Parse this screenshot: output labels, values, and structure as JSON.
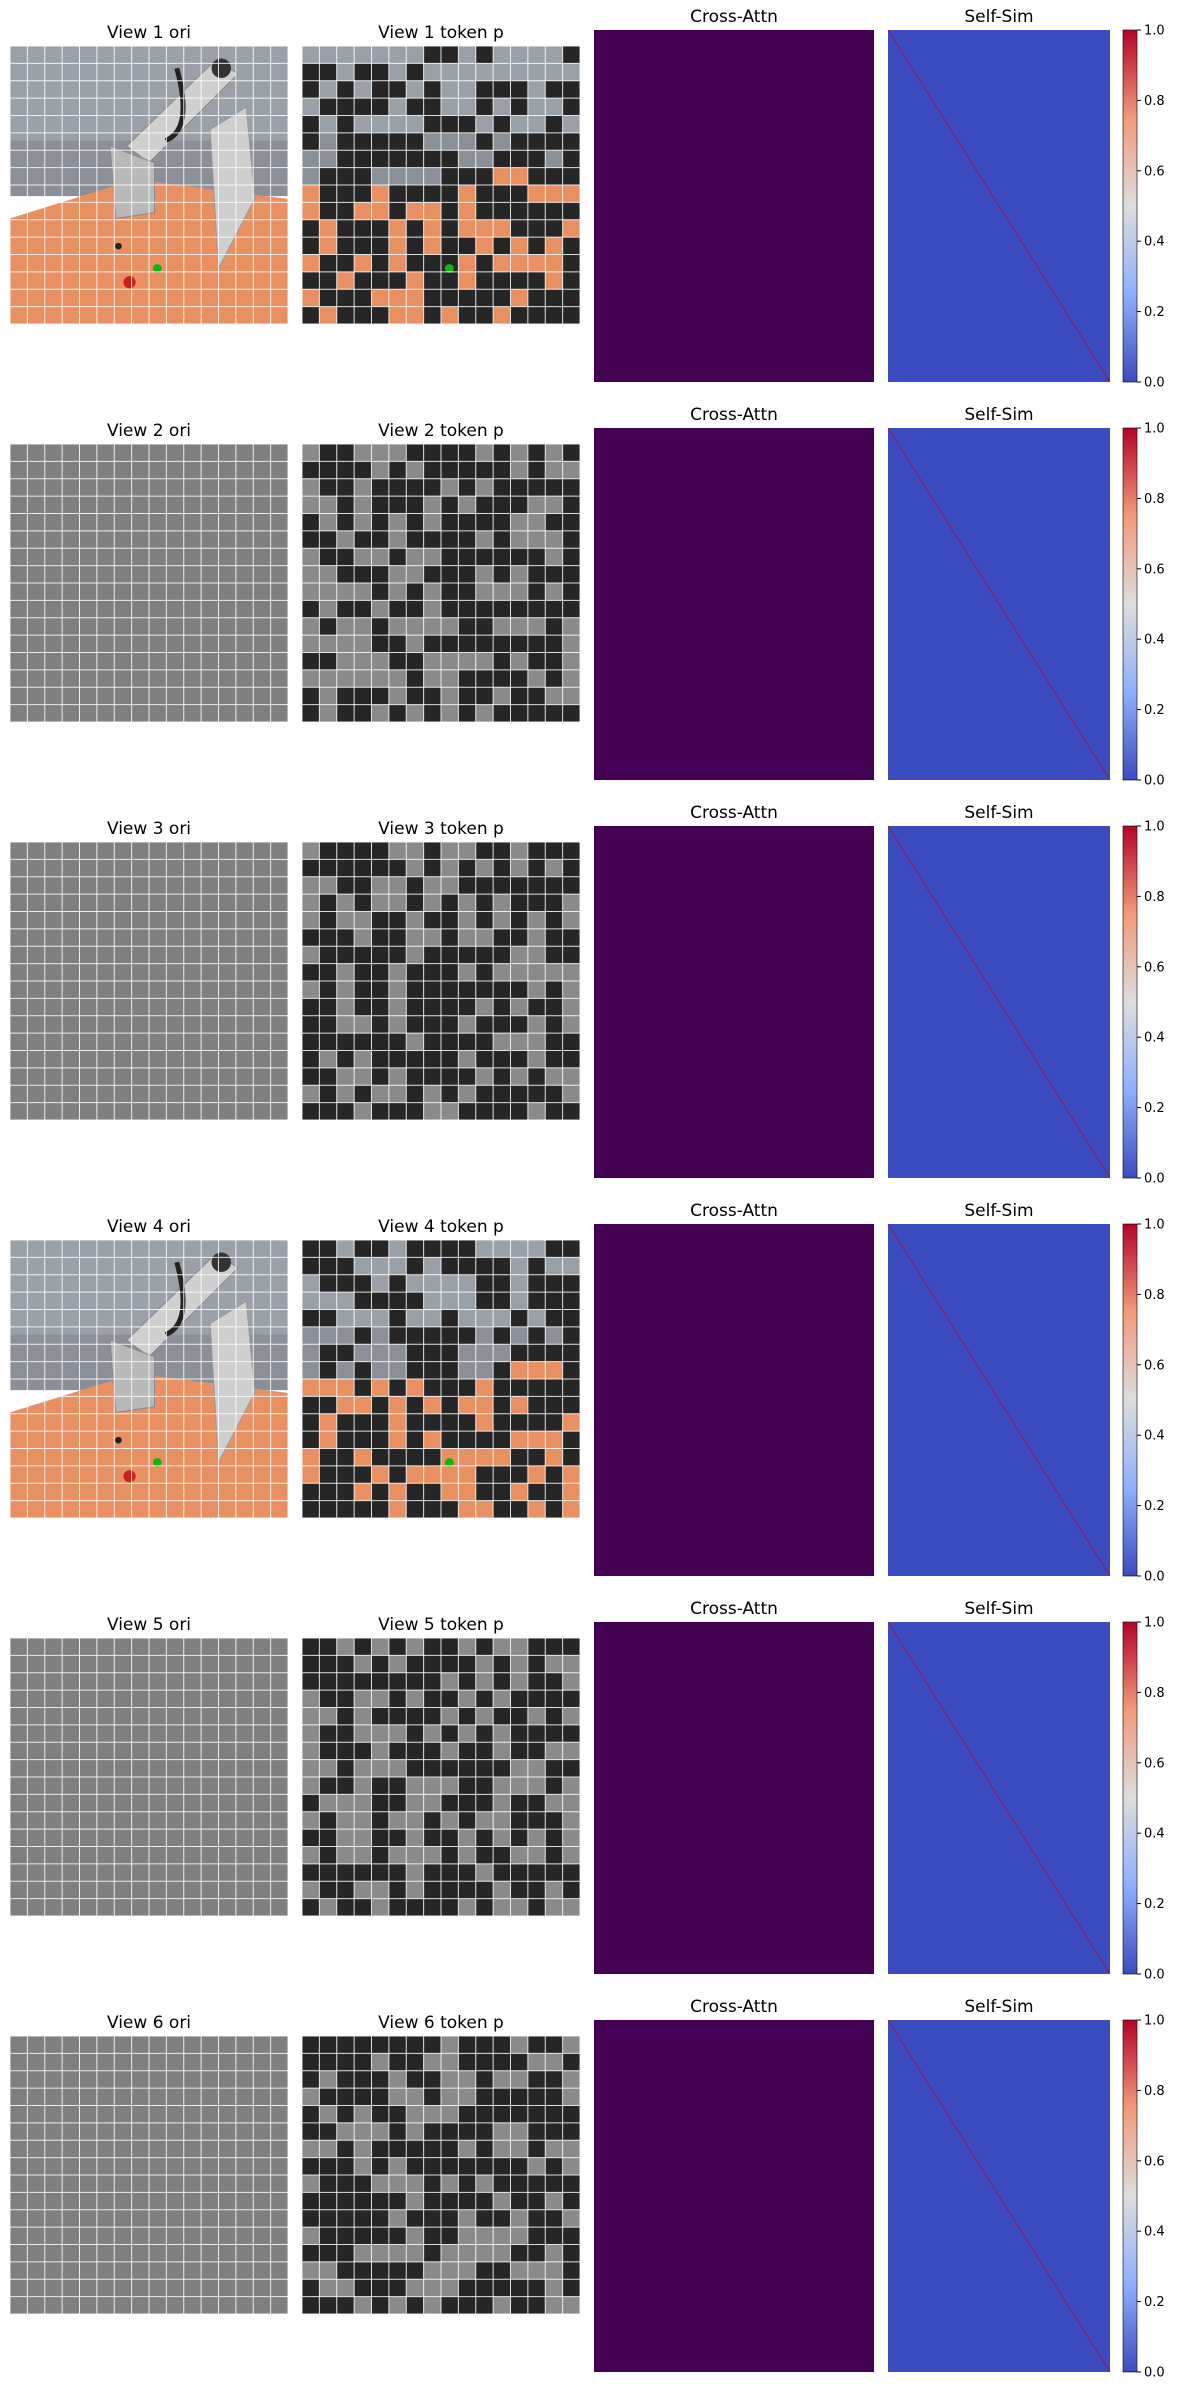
{
  "chart_data": {
    "type": "heatmap",
    "rows": [
      {
        "view": 1,
        "panels": [
          {
            "title": "View 1 ori",
            "content": "image",
            "scene": "robot"
          },
          {
            "title": "View 1 token p",
            "content": "token-mask",
            "scene": "robot"
          },
          {
            "title": "Cross-Attn",
            "content": "heatmap",
            "colormap": "viridis",
            "uniform_value": 0.0
          },
          {
            "title": "Self-Sim",
            "content": "heatmap",
            "colormap": "coolwarm",
            "diagonal_value": 1.0,
            "off_diagonal_value": 0.0
          }
        ],
        "colorbar": {
          "ticks": [
            "0.0",
            "0.2",
            "0.4",
            "0.6",
            "0.8",
            "1.0"
          ],
          "range": [
            0,
            1
          ],
          "colormap": "coolwarm"
        }
      },
      {
        "view": 2,
        "panels": [
          {
            "title": "View 2 ori",
            "content": "image",
            "scene": "blank"
          },
          {
            "title": "View 2 token p",
            "content": "token-mask",
            "scene": "blank"
          },
          {
            "title": "Cross-Attn",
            "content": "heatmap",
            "colormap": "viridis",
            "uniform_value": 0.0
          },
          {
            "title": "Self-Sim",
            "content": "heatmap",
            "colormap": "coolwarm",
            "diagonal_value": 1.0,
            "off_diagonal_value": 0.0
          }
        ],
        "colorbar": {
          "ticks": [
            "0.0",
            "0.2",
            "0.4",
            "0.6",
            "0.8",
            "1.0"
          ],
          "range": [
            0,
            1
          ],
          "colormap": "coolwarm"
        }
      },
      {
        "view": 3,
        "panels": [
          {
            "title": "View 3 ori",
            "content": "image",
            "scene": "blank"
          },
          {
            "title": "View 3 token p",
            "content": "token-mask",
            "scene": "blank"
          },
          {
            "title": "Cross-Attn",
            "content": "heatmap",
            "colormap": "viridis",
            "uniform_value": 0.0
          },
          {
            "title": "Self-Sim",
            "content": "heatmap",
            "colormap": "coolwarm",
            "diagonal_value": 1.0,
            "off_diagonal_value": 0.0
          }
        ],
        "colorbar": {
          "ticks": [
            "0.0",
            "0.2",
            "0.4",
            "0.6",
            "0.8",
            "1.0"
          ],
          "range": [
            0,
            1
          ],
          "colormap": "coolwarm"
        }
      },
      {
        "view": 4,
        "panels": [
          {
            "title": "View 4 ori",
            "content": "image",
            "scene": "robot"
          },
          {
            "title": "View 4 token p",
            "content": "token-mask",
            "scene": "robot"
          },
          {
            "title": "Cross-Attn",
            "content": "heatmap",
            "colormap": "viridis",
            "uniform_value": 0.0
          },
          {
            "title": "Self-Sim",
            "content": "heatmap",
            "colormap": "coolwarm",
            "diagonal_value": 1.0,
            "off_diagonal_value": 0.0
          }
        ],
        "colorbar": {
          "ticks": [
            "0.0",
            "0.2",
            "0.4",
            "0.6",
            "0.8",
            "1.0"
          ],
          "range": [
            0,
            1
          ],
          "colormap": "coolwarm"
        }
      },
      {
        "view": 5,
        "panels": [
          {
            "title": "View 5 ori",
            "content": "image",
            "scene": "blank"
          },
          {
            "title": "View 5 token p",
            "content": "token-mask",
            "scene": "blank"
          },
          {
            "title": "Cross-Attn",
            "content": "heatmap",
            "colormap": "viridis",
            "uniform_value": 0.0
          },
          {
            "title": "Self-Sim",
            "content": "heatmap",
            "colormap": "coolwarm",
            "diagonal_value": 1.0,
            "off_diagonal_value": 0.0
          }
        ],
        "colorbar": {
          "ticks": [
            "0.0",
            "0.2",
            "0.4",
            "0.6",
            "0.8",
            "1.0"
          ],
          "range": [
            0,
            1
          ],
          "colormap": "coolwarm"
        }
      },
      {
        "view": 6,
        "panels": [
          {
            "title": "View 6 ori",
            "content": "image",
            "scene": "blank"
          },
          {
            "title": "View 6 token p",
            "content": "token-mask",
            "scene": "blank"
          },
          {
            "title": "Cross-Attn",
            "content": "heatmap",
            "colormap": "viridis",
            "uniform_value": 0.0
          },
          {
            "title": "Self-Sim",
            "content": "heatmap",
            "colormap": "coolwarm",
            "diagonal_value": 1.0,
            "off_diagonal_value": 0.0
          }
        ],
        "colorbar": {
          "ticks": [
            "0.0",
            "0.2",
            "0.4",
            "0.6",
            "0.8",
            "1.0"
          ],
          "range": [
            0,
            1
          ],
          "colormap": "coolwarm"
        }
      }
    ],
    "patch_grid": 16,
    "colors": {
      "blank_image": "#7f7f7f",
      "token_dark": "#262626",
      "token_light": "#8a8a8a",
      "grid_line": "#ffffff",
      "cross_attn": "#440154",
      "self_sim_base": "#3b4cc0",
      "self_sim_diag": "#b40426",
      "sky": "#8a8f98",
      "ground": "#e89062",
      "robot": "#cfcfcf",
      "red_ball": "#cc2020",
      "green_marker": "#12b312"
    }
  }
}
